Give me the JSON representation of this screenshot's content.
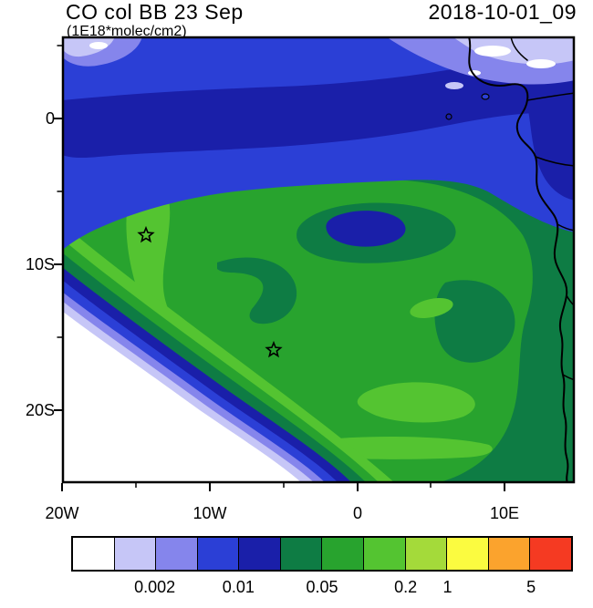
{
  "header": {
    "title": "CO col BB 23 Sep",
    "subtitle": "(1E18*molec/cm2)",
    "timestamp": "2018-10-01_09"
  },
  "axes": {
    "y_labels": [
      "0",
      "10S",
      "20S"
    ],
    "x_labels": [
      "20W",
      "10W",
      "0",
      "10E"
    ]
  },
  "colorbar": {
    "colors": [
      "#ffffff",
      "#c6c6f7",
      "#8585ec",
      "#2b3fd6",
      "#1a1fa9",
      "#0e7c44",
      "#28a32e",
      "#54c431",
      "#a4da3a",
      "#fbfb40",
      "#fba32d",
      "#f53a22"
    ],
    "labels": [
      {
        "text": "0.002",
        "boundary": 2
      },
      {
        "text": "0.01",
        "boundary": 4
      },
      {
        "text": "0.05",
        "boundary": 6
      },
      {
        "text": "0.2",
        "boundary": 8
      },
      {
        "text": "1",
        "boundary": 9
      },
      {
        "text": "5",
        "boundary": 11
      }
    ]
  },
  "chart_data": {
    "type": "heatmap",
    "subtype": "filled-contour-map",
    "title": "CO col BB 23 Sep",
    "units": "1E18*molec/cm2",
    "timestamp": "2018-10-01_09",
    "x": {
      "tick_labels": [
        "20W",
        "10W",
        "0",
        "10E"
      ],
      "range_deg_lon": [
        -20,
        15
      ]
    },
    "y": {
      "tick_labels": [
        "0",
        "10S",
        "20S"
      ],
      "range_deg_lat": [
        -25,
        6
      ]
    },
    "colorbar": {
      "n_colors": 12,
      "tick_labels": [
        "0.002",
        "0.01",
        "0.05",
        "0.2",
        "1",
        "5"
      ],
      "position": "bottom"
    },
    "markers": [
      {
        "symbol": "open-star",
        "approx_lon": -14.3,
        "approx_lat": -8
      },
      {
        "symbol": "open-star",
        "approx_lon": -5.7,
        "approx_lat": -16
      }
    ],
    "field_summary": [
      {
        "region": "far southwest ocean corner",
        "approx_value": "< 0.002"
      },
      {
        "region": "narrow diagonal gradient bands northeast of the white corner",
        "approx_value": "0.002 - 0.01"
      },
      {
        "region": "northern band along and above the equator",
        "approx_value": "0.005 - 0.02"
      },
      {
        "region": "broad central Atlantic plume",
        "approx_value": "0.05 - 0.1"
      },
      {
        "region": "bright ridge near 14W 8S and patches near 5W 15S and along 23S",
        "approx_value": "0.1 - 0.2"
      },
      {
        "region": "northeast corner over land near coast",
        "approx_value": "0.001 - 0.005"
      },
      {
        "region": "dark pocket near 2W 6S and along Angola coast",
        "approx_value": "0.01 - 0.05"
      }
    ],
    "grid": false
  }
}
